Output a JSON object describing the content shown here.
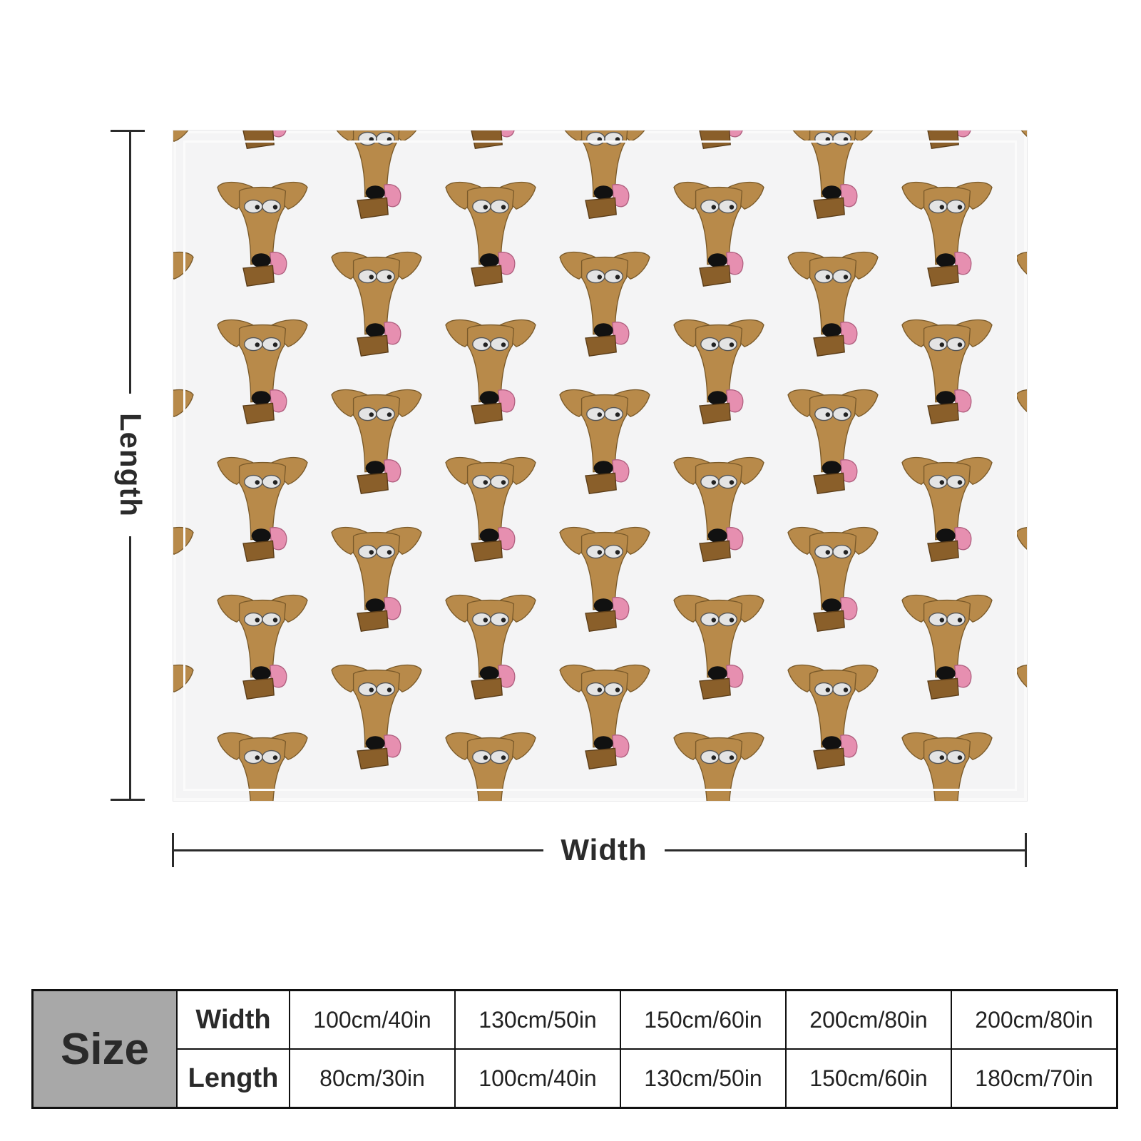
{
  "dimensions": {
    "length_label": "Length",
    "width_label": "Width"
  },
  "product": {
    "pattern_icon": "cartoon-dog-face-icon",
    "colors": {
      "fur": "#b88a4a",
      "nose": "#111111",
      "tongue": "#e68fb0",
      "collar": "#8a5f2a",
      "eye": "#e4e4e4",
      "background": "#f4f4f5"
    }
  },
  "size_table": {
    "header": "Size",
    "width_label": "Width",
    "length_label": "Length",
    "widths": [
      "100cm/40in",
      "130cm/50in",
      "150cm/60in",
      "200cm/80in",
      "200cm/80in"
    ],
    "lengths": [
      "80cm/30in",
      "100cm/40in",
      "130cm/50in",
      "150cm/60in",
      "180cm/70in"
    ]
  }
}
